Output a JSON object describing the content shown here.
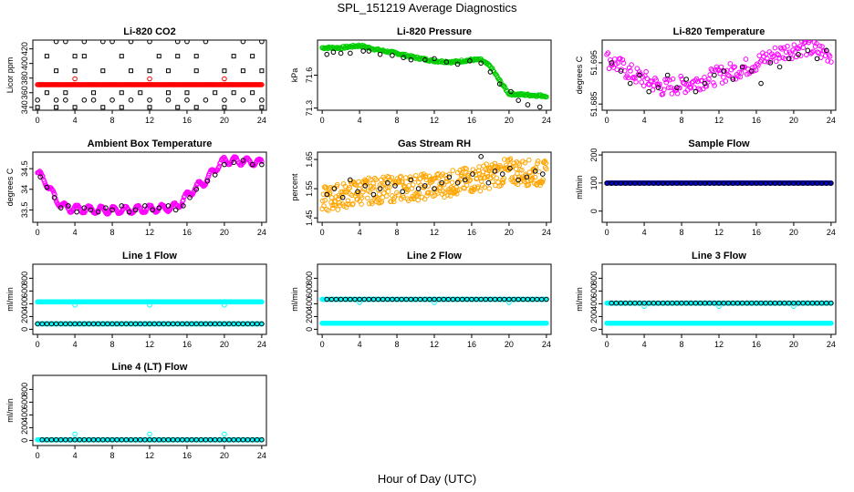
{
  "page": {
    "title": "SPL_151219  Average Diagnostics",
    "xlabel": "Hour of Day (UTC)"
  },
  "colors": {
    "red": "#ff0000",
    "green": "#00cc00",
    "magenta": "#ff00ff",
    "orange": "#ffa500",
    "blue": "#0000cc",
    "cyan": "#00ffff",
    "black": "#000000"
  },
  "chart_data": [
    {
      "id": "li820-co2",
      "type": "scatter",
      "title": "Li-820 CO2",
      "ylabel": "Licor ppm",
      "xticks": [
        0,
        4,
        8,
        12,
        16,
        20,
        24
      ],
      "yticks": [
        340,
        360,
        380,
        400,
        420
      ],
      "xlim": [
        -0.5,
        24.5
      ],
      "ylim": [
        336,
        432
      ],
      "series": [
        {
          "color": "red",
          "style": "band",
          "x_range": [
            0,
            24
          ],
          "y": 371,
          "step": 0.1
        },
        {
          "color": "red",
          "style": "points",
          "x": [
            4,
            12,
            20
          ],
          "y": [
            379,
            379,
            379
          ]
        },
        {
          "color": "black",
          "style": "open",
          "x": [
            2,
            3,
            5,
            7,
            8,
            10,
            12,
            15,
            16,
            18,
            22,
            24
          ],
          "y": [
            430,
            430,
            430,
            430,
            430,
            430,
            430,
            430,
            430,
            430,
            430,
            430
          ]
        },
        {
          "color": "black",
          "style": "square",
          "x": [
            2,
            4,
            7,
            10,
            12,
            14,
            17,
            20,
            22,
            24
          ],
          "y": [
            390,
            390,
            390,
            390,
            390,
            390,
            390,
            390,
            390,
            390
          ]
        },
        {
          "color": "black",
          "style": "square",
          "x": [
            1,
            4,
            5,
            9,
            13,
            15,
            17,
            21,
            23
          ],
          "y": [
            410,
            410,
            410,
            410,
            410,
            410,
            410,
            410,
            410
          ]
        },
        {
          "color": "black",
          "style": "open",
          "x": [
            0,
            2,
            3,
            5,
            6,
            8,
            10,
            12,
            14,
            16,
            18,
            20,
            22,
            24
          ],
          "y": [
            350,
            350,
            350,
            350,
            350,
            350,
            350,
            350,
            350,
            350,
            350,
            350,
            350,
            350
          ]
        },
        {
          "color": "black",
          "style": "square",
          "x": [
            1,
            3,
            6,
            9,
            11,
            14,
            16,
            19,
            21,
            23
          ],
          "y": [
            360,
            360,
            360,
            360,
            360,
            360,
            360,
            360,
            360,
            360
          ]
        },
        {
          "color": "black",
          "style": "square",
          "x": [
            0,
            2,
            4,
            7,
            9,
            12,
            15,
            17,
            20,
            24
          ],
          "y": [
            340,
            340,
            340,
            340,
            340,
            340,
            340,
            340,
            340,
            340
          ]
        }
      ]
    },
    {
      "id": "li820-pressure",
      "type": "scatter",
      "title": "Li-820 Pressure",
      "ylabel": "kPa",
      "xticks": [
        0,
        4,
        8,
        12,
        16,
        20,
        24
      ],
      "yticks": [
        71.3,
        71.6
      ],
      "xlim": [
        -0.5,
        24.5
      ],
      "ylim": [
        71.28,
        71.92
      ],
      "series": [
        {
          "color": "green",
          "style": "curve",
          "step": 0.1,
          "x": [
            0,
            2,
            4,
            6,
            8,
            10,
            12,
            14,
            16,
            17,
            18,
            19,
            20,
            22,
            24
          ],
          "y": [
            71.85,
            71.85,
            71.87,
            71.83,
            71.8,
            71.76,
            71.73,
            71.72,
            71.74,
            71.74,
            71.68,
            71.55,
            71.43,
            71.42,
            71.41
          ]
        },
        {
          "color": "black",
          "style": "open",
          "x": [
            0.5,
            1.2,
            2,
            3,
            4.4,
            5,
            6.2,
            7.5,
            8.7,
            9.5,
            11,
            12,
            13.3,
            14.5,
            15.8,
            17,
            18,
            19,
            20.2,
            21,
            22,
            23.3
          ],
          "y": [
            71.79,
            71.81,
            71.8,
            71.8,
            71.82,
            71.82,
            71.79,
            71.78,
            71.76,
            71.74,
            71.74,
            71.75,
            71.72,
            71.7,
            71.73,
            71.71,
            71.63,
            71.52,
            71.45,
            71.37,
            71.33,
            71.31
          ]
        }
      ]
    },
    {
      "id": "li820-temperature",
      "type": "scatter",
      "title": "Li-820 Temperature",
      "ylabel": "degrees C",
      "xticks": [
        0,
        4,
        8,
        12,
        16,
        20,
        24
      ],
      "yticks": [
        51.685,
        51.695
      ],
      "xlim": [
        -0.5,
        24.5
      ],
      "ylim": [
        51.6835,
        51.7005
      ],
      "series": [
        {
          "color": "magenta",
          "style": "noisy",
          "step": 0.12,
          "amp": 0.0022,
          "x": [
            0,
            3,
            6,
            9,
            12,
            15,
            18,
            21,
            24
          ],
          "y": [
            51.696,
            51.692,
            51.689,
            51.69,
            51.692,
            51.694,
            51.697,
            51.699,
            51.697
          ]
        },
        {
          "color": "black",
          "style": "open",
          "x": [
            0.5,
            1.5,
            2.5,
            3.5,
            4.5,
            5.5,
            6.5,
            7.5,
            8.5,
            9.5,
            10.5,
            11.5,
            12.5,
            13.5,
            14.5,
            15.5,
            16.5,
            17.5,
            18.5,
            19.5,
            20.5,
            21.5,
            22.5,
            23.5
          ],
          "y": [
            51.695,
            51.693,
            51.69,
            51.692,
            51.688,
            51.689,
            51.692,
            51.689,
            51.691,
            51.688,
            51.69,
            51.692,
            51.693,
            51.691,
            51.694,
            51.693,
            51.69,
            51.695,
            51.694,
            51.696,
            51.697,
            51.698,
            51.696,
            51.698
          ]
        }
      ]
    },
    {
      "id": "ambient-box-temperature",
      "type": "scatter",
      "title": "Ambient Box Temperature",
      "ylabel": "degrees C",
      "xticks": [
        0,
        4,
        8,
        12,
        16,
        20,
        24
      ],
      "yticks": [
        33.5,
        34.0,
        34.5
      ],
      "xlim": [
        -0.5,
        24.5
      ],
      "ylim": [
        33.2,
        34.9
      ],
      "series": [
        {
          "color": "magenta",
          "style": "wave",
          "step": 0.08,
          "wave_amp": 0.09,
          "wave_period": 1.3,
          "x": [
            0,
            1,
            2,
            3,
            6,
            10,
            14,
            15,
            16,
            17,
            18,
            19,
            20,
            22,
            24
          ],
          "y": [
            34.4,
            34.15,
            33.75,
            33.55,
            33.5,
            33.5,
            33.55,
            33.6,
            33.85,
            34.05,
            34.2,
            34.5,
            34.7,
            34.68,
            34.65
          ]
        },
        {
          "color": "black",
          "style": "open",
          "x": [
            0.3,
            1,
            1.8,
            2.5,
            3.3,
            4.2,
            5,
            5.7,
            6.5,
            7.3,
            8,
            9,
            9.8,
            10.5,
            11.5,
            12.3,
            13,
            14,
            14.8,
            15.6,
            16.3,
            17,
            18.2,
            19,
            20,
            21,
            22,
            23,
            24
          ],
          "y": [
            34.3,
            34.05,
            33.8,
            33.55,
            33.6,
            33.45,
            33.55,
            33.5,
            33.45,
            33.55,
            33.5,
            33.6,
            33.45,
            33.5,
            33.6,
            33.5,
            33.55,
            33.6,
            33.5,
            33.6,
            33.8,
            34.0,
            34.2,
            34.35,
            34.6,
            34.65,
            34.7,
            34.6,
            34.6
          ]
        }
      ]
    },
    {
      "id": "gas-stream-rh",
      "type": "scatter",
      "title": "Gas Stream RH",
      "ylabel": "percent",
      "xticks": [
        0,
        4,
        8,
        12,
        16,
        20,
        24
      ],
      "yticks": [
        1.45,
        1.55,
        1.65
      ],
      "xlim": [
        -0.5,
        24.5
      ],
      "ylim": [
        1.435,
        1.675
      ],
      "series": [
        {
          "color": "orange",
          "style": "noisy",
          "step": 0.06,
          "amp": 0.045,
          "x": [
            0,
            4,
            8,
            12,
            16,
            20,
            24
          ],
          "y": [
            1.51,
            1.54,
            1.55,
            1.56,
            1.58,
            1.61,
            1.6
          ]
        },
        {
          "color": "black",
          "style": "open",
          "x": [
            0.5,
            1.3,
            2.2,
            3,
            3.8,
            4.6,
            5.5,
            6.2,
            7,
            7.8,
            8.6,
            9.5,
            10.3,
            11,
            12,
            12.8,
            13.6,
            14.5,
            15.3,
            16.1,
            17,
            17.8,
            18.5,
            19.3,
            20.1,
            21,
            21.9,
            22.8,
            23.6
          ],
          "y": [
            1.53,
            1.55,
            1.52,
            1.58,
            1.54,
            1.56,
            1.53,
            1.55,
            1.57,
            1.56,
            1.54,
            1.58,
            1.55,
            1.56,
            1.55,
            1.57,
            1.59,
            1.57,
            1.58,
            1.6,
            1.66,
            1.57,
            1.61,
            1.6,
            1.62,
            1.58,
            1.59,
            1.61,
            1.6
          ]
        }
      ]
    },
    {
      "id": "sample-flow",
      "type": "scatter",
      "title": "Sample Flow",
      "ylabel": "ml/min",
      "xticks": [
        0,
        4,
        8,
        12,
        16,
        20,
        24
      ],
      "yticks": [
        0,
        100,
        200
      ],
      "xlim": [
        -0.5,
        24.5
      ],
      "ylim": [
        -40,
        210
      ],
      "series": [
        {
          "color": "blue",
          "style": "band",
          "x_range": [
            0,
            24
          ],
          "y": 100,
          "step": 0.08
        },
        {
          "color": "black",
          "style": "open",
          "x_range": [
            0,
            24
          ],
          "y": 99,
          "step": 0.5
        }
      ]
    },
    {
      "id": "line1-flow",
      "type": "scatter",
      "title": "Line 1 Flow",
      "ylabel": "ml/min",
      "xticks": [
        0,
        4,
        8,
        12,
        16,
        20,
        24
      ],
      "yticks": [
        0,
        200,
        400,
        600,
        800
      ],
      "xlim": [
        -0.5,
        24.5
      ],
      "ylim": [
        -80,
        1020
      ],
      "series": [
        {
          "color": "cyan",
          "style": "band",
          "x_range": [
            0,
            24
          ],
          "y": 430,
          "step": 0.08
        },
        {
          "color": "cyan",
          "style": "points",
          "x": [
            4,
            12,
            20
          ],
          "y": [
            380,
            380,
            380
          ]
        },
        {
          "color": "cyan",
          "style": "band",
          "x_range": [
            0,
            24
          ],
          "y": 85,
          "step": 0.08
        },
        {
          "color": "black",
          "style": "open",
          "x_range": [
            0,
            24
          ],
          "y": 85,
          "step": 0.5
        }
      ]
    },
    {
      "id": "line2-flow",
      "type": "scatter",
      "title": "Line 2 Flow",
      "ylabel": "ml/min",
      "xticks": [
        0,
        4,
        8,
        12,
        16,
        20,
        24
      ],
      "yticks": [
        0,
        200,
        400,
        600,
        800
      ],
      "xlim": [
        -0.5,
        24.5
      ],
      "ylim": [
        -80,
        1020
      ],
      "series": [
        {
          "color": "cyan",
          "style": "band",
          "x_range": [
            0,
            24
          ],
          "y": 470,
          "step": 0.08
        },
        {
          "color": "cyan",
          "style": "points",
          "x": [
            4,
            12,
            20
          ],
          "y": [
            420,
            420,
            420
          ]
        },
        {
          "color": "black",
          "style": "open",
          "x_range": [
            0.5,
            24
          ],
          "y": 470,
          "step": 0.5
        },
        {
          "color": "cyan",
          "style": "band",
          "x_range": [
            0,
            24
          ],
          "y": 95,
          "step": 0.08
        }
      ]
    },
    {
      "id": "line3-flow",
      "type": "scatter",
      "title": "Line 3 Flow",
      "ylabel": "ml/min",
      "xticks": [
        0,
        4,
        8,
        12,
        16,
        20,
        24
      ],
      "yticks": [
        0,
        200,
        400,
        600,
        800
      ],
      "xlim": [
        -0.5,
        24.5
      ],
      "ylim": [
        -80,
        1020
      ],
      "series": [
        {
          "color": "cyan",
          "style": "band",
          "x_range": [
            0,
            24
          ],
          "y": 410,
          "step": 0.08
        },
        {
          "color": "cyan",
          "style": "points",
          "x": [
            4,
            12,
            20
          ],
          "y": [
            360,
            360,
            360
          ]
        },
        {
          "color": "black",
          "style": "open",
          "x_range": [
            0.5,
            24
          ],
          "y": 410,
          "step": 0.5
        },
        {
          "color": "cyan",
          "style": "band",
          "x_range": [
            0,
            24
          ],
          "y": 95,
          "step": 0.08
        }
      ]
    },
    {
      "id": "line4-flow",
      "type": "scatter",
      "title": "Line 4 (LT) Flow",
      "ylabel": "ml/min",
      "xticks": [
        0,
        4,
        8,
        12,
        16,
        20,
        24
      ],
      "yticks": [
        0,
        200,
        400,
        600,
        800
      ],
      "xlim": [
        -0.5,
        24.5
      ],
      "ylim": [
        -80,
        1020
      ],
      "series": [
        {
          "color": "cyan",
          "style": "band",
          "x_range": [
            0,
            24
          ],
          "y": 10,
          "step": 0.08
        },
        {
          "color": "cyan",
          "style": "points",
          "x": [
            4,
            12,
            20
          ],
          "y": [
            100,
            100,
            100
          ]
        },
        {
          "color": "black",
          "style": "open",
          "x_range": [
            0.5,
            24
          ],
          "y": 10,
          "step": 0.5
        }
      ]
    }
  ]
}
